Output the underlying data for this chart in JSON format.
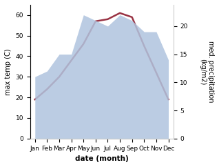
{
  "months": [
    "Jan",
    "Feb",
    "Mar",
    "Apr",
    "May",
    "Jun",
    "Jul",
    "Aug",
    "Sep",
    "Oct",
    "Nov",
    "Dec"
  ],
  "month_positions": [
    1,
    2,
    3,
    4,
    5,
    6,
    7,
    8,
    9,
    10,
    11,
    12
  ],
  "temperature": [
    19,
    24,
    30,
    38,
    46,
    57,
    58,
    61,
    59,
    45,
    32,
    19
  ],
  "precipitation": [
    11,
    12,
    15,
    15,
    22,
    21,
    20,
    22,
    21,
    19,
    19,
    14
  ],
  "temp_ylim": [
    0,
    65
  ],
  "precip_ylim": [
    0,
    23.8
  ],
  "precip_yticks": [
    0,
    5,
    10,
    15,
    20
  ],
  "temp_yticks": [
    0,
    10,
    20,
    30,
    40,
    50,
    60
  ],
  "temp_color": "#993344",
  "precip_fill_color": "#b0c4de",
  "xlabel": "date (month)",
  "ylabel_left": "max temp (C)",
  "ylabel_right": "med. precipitation\n(kg/m2)",
  "bg_color": "#ffffff",
  "title_fontsize": 7,
  "axis_fontsize": 7,
  "tick_fontsize": 6.5
}
